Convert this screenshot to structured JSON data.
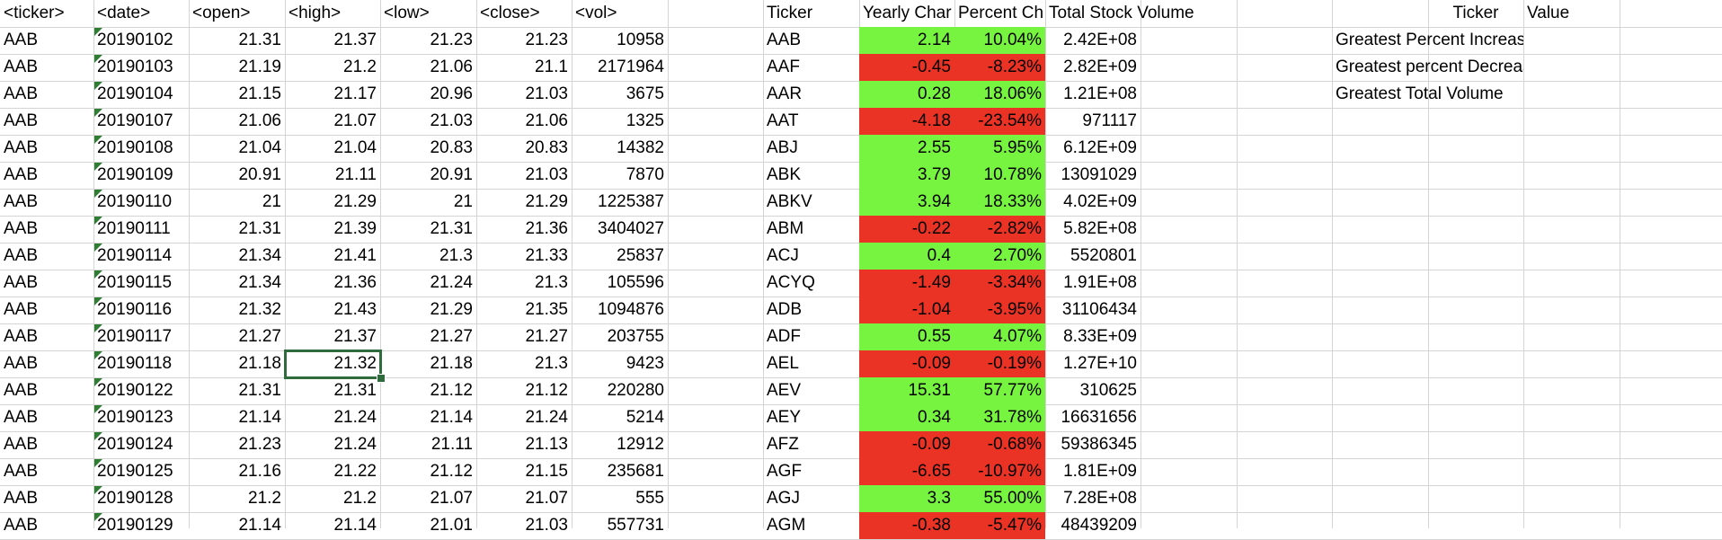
{
  "app": "spreadsheet",
  "raw_data": {
    "headers": [
      "<ticker>",
      "<date>",
      "<open>",
      "<high>",
      "<low>",
      "<close>",
      "<vol>"
    ],
    "rows": [
      [
        "AAB",
        "20190102",
        "21.31",
        "21.37",
        "21.23",
        "21.23",
        "10958"
      ],
      [
        "AAB",
        "20190103",
        "21.19",
        "21.2",
        "21.06",
        "21.1",
        "2171964"
      ],
      [
        "AAB",
        "20190104",
        "21.15",
        "21.17",
        "20.96",
        "21.03",
        "3675"
      ],
      [
        "AAB",
        "20190107",
        "21.06",
        "21.07",
        "21.03",
        "21.06",
        "1325"
      ],
      [
        "AAB",
        "20190108",
        "21.04",
        "21.04",
        "20.83",
        "20.83",
        "14382"
      ],
      [
        "AAB",
        "20190109",
        "20.91",
        "21.11",
        "20.91",
        "21.03",
        "7870"
      ],
      [
        "AAB",
        "20190110",
        "21",
        "21.29",
        "21",
        "21.29",
        "1225387"
      ],
      [
        "AAB",
        "20190111",
        "21.31",
        "21.39",
        "21.31",
        "21.36",
        "3404027"
      ],
      [
        "AAB",
        "20190114",
        "21.34",
        "21.41",
        "21.3",
        "21.33",
        "25837"
      ],
      [
        "AAB",
        "20190115",
        "21.34",
        "21.36",
        "21.24",
        "21.3",
        "105596"
      ],
      [
        "AAB",
        "20190116",
        "21.32",
        "21.43",
        "21.29",
        "21.35",
        "1094876"
      ],
      [
        "AAB",
        "20190117",
        "21.27",
        "21.37",
        "21.27",
        "21.27",
        "203755"
      ],
      [
        "AAB",
        "20190118",
        "21.18",
        "21.32",
        "21.18",
        "21.3",
        "9423"
      ],
      [
        "AAB",
        "20190122",
        "21.31",
        "21.31",
        "21.12",
        "21.12",
        "220280"
      ],
      [
        "AAB",
        "20190123",
        "21.14",
        "21.24",
        "21.14",
        "21.24",
        "5214"
      ],
      [
        "AAB",
        "20190124",
        "21.23",
        "21.24",
        "21.11",
        "21.13",
        "12912"
      ],
      [
        "AAB",
        "20190125",
        "21.16",
        "21.22",
        "21.12",
        "21.15",
        "235681"
      ],
      [
        "AAB",
        "20190128",
        "21.2",
        "21.2",
        "21.07",
        "21.07",
        "555"
      ],
      [
        "AAB",
        "20190129",
        "21.14",
        "21.14",
        "21.01",
        "21.03",
        "557731"
      ]
    ]
  },
  "summary": {
    "headers": [
      "Ticker",
      "Yearly Char",
      "Percent Ch",
      "Total Stock Volume"
    ],
    "rows": [
      {
        "ticker": "AAB",
        "yearly_change": "2.14",
        "percent_change": "10.04%",
        "volume": "2.42E+08",
        "status": "positive"
      },
      {
        "ticker": "AAF",
        "yearly_change": "-0.45",
        "percent_change": "-8.23%",
        "volume": "2.82E+09",
        "status": "negative"
      },
      {
        "ticker": "AAR",
        "yearly_change": "0.28",
        "percent_change": "18.06%",
        "volume": "1.21E+08",
        "status": "positive"
      },
      {
        "ticker": "AAT",
        "yearly_change": "-4.18",
        "percent_change": "-23.54%",
        "volume": "971117",
        "status": "negative"
      },
      {
        "ticker": "ABJ",
        "yearly_change": "2.55",
        "percent_change": "5.95%",
        "volume": "6.12E+09",
        "status": "positive"
      },
      {
        "ticker": "ABK",
        "yearly_change": "3.79",
        "percent_change": "10.78%",
        "volume": "13091029",
        "status": "positive"
      },
      {
        "ticker": "ABKV",
        "yearly_change": "3.94",
        "percent_change": "18.33%",
        "volume": "4.02E+09",
        "status": "positive"
      },
      {
        "ticker": "ABM",
        "yearly_change": "-0.22",
        "percent_change": "-2.82%",
        "volume": "5.82E+08",
        "status": "negative"
      },
      {
        "ticker": "ACJ",
        "yearly_change": "0.4",
        "percent_change": "2.70%",
        "volume": "5520801",
        "status": "positive"
      },
      {
        "ticker": "ACYQ",
        "yearly_change": "-1.49",
        "percent_change": "-3.34%",
        "volume": "1.91E+08",
        "status": "negative"
      },
      {
        "ticker": "ADB",
        "yearly_change": "-1.04",
        "percent_change": "-3.95%",
        "volume": "31106434",
        "status": "negative"
      },
      {
        "ticker": "ADF",
        "yearly_change": "0.55",
        "percent_change": "4.07%",
        "volume": "8.33E+09",
        "status": "positive"
      },
      {
        "ticker": "AEL",
        "yearly_change": "-0.09",
        "percent_change": "-0.19%",
        "volume": "1.27E+10",
        "status": "negative"
      },
      {
        "ticker": "AEV",
        "yearly_change": "15.31",
        "percent_change": "57.77%",
        "volume": "310625",
        "status": "positive"
      },
      {
        "ticker": "AEY",
        "yearly_change": "0.34",
        "percent_change": "31.78%",
        "volume": "16631656",
        "status": "positive"
      },
      {
        "ticker": "AFZ",
        "yearly_change": "-0.09",
        "percent_change": "-0.68%",
        "volume": "59386345",
        "status": "negative"
      },
      {
        "ticker": "AGF",
        "yearly_change": "-6.65",
        "percent_change": "-10.97%",
        "volume": "1.81E+09",
        "status": "negative"
      },
      {
        "ticker": "AGJ",
        "yearly_change": "3.3",
        "percent_change": "55.00%",
        "volume": "7.28E+08",
        "status": "positive"
      },
      {
        "ticker": "AGM",
        "yearly_change": "-0.38",
        "percent_change": "-5.47%",
        "volume": "48439209",
        "status": "negative"
      }
    ]
  },
  "greatest": {
    "headers": [
      "Ticker",
      "Value"
    ],
    "labels": [
      "Greatest Percent Increase",
      "Greatest percent Decrease",
      "Greatest Total Volume"
    ]
  },
  "selected_cell": "21.32",
  "colors": {
    "positive": "#77f43f",
    "negative": "#ea3324",
    "gridline": "#d4d4d4",
    "selection": "#2f6b3c"
  }
}
